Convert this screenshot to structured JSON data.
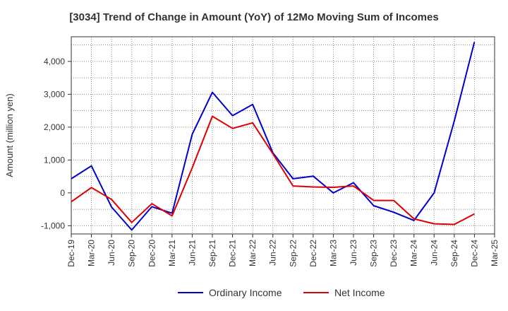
{
  "chart_data": {
    "type": "line",
    "title": "[3034]  Trend of Change in Amount (YoY) of 12Mo Moving Sum of Incomes",
    "xlabel": "",
    "ylabel": "Amount (million yen)",
    "ylim": [
      -1250,
      4750
    ],
    "yticks": [
      -1000,
      0,
      1000,
      2000,
      3000,
      4000
    ],
    "ytick_labels": [
      "-1,000",
      "0",
      "1,000",
      "2,000",
      "3,000",
      "4,000"
    ],
    "categories": [
      "Dec-19",
      "Mar-20",
      "Jun-20",
      "Sep-20",
      "Dec-20",
      "Mar-21",
      "Jun-21",
      "Sep-21",
      "Dec-21",
      "Mar-22",
      "Jun-22",
      "Sep-22",
      "Dec-22",
      "Mar-23",
      "Jun-23",
      "Sep-23",
      "Dec-23",
      "Mar-24",
      "Jun-24",
      "Sep-24",
      "Dec-24",
      "Mar-25"
    ],
    "grid": true,
    "legend_position": "bottom",
    "series": [
      {
        "name": "Ordinary Income",
        "color": "#0000cc",
        "values": [
          430,
          820,
          -430,
          -1130,
          -420,
          -620,
          1780,
          3060,
          2350,
          2690,
          1220,
          430,
          510,
          0,
          310,
          -390,
          -590,
          -840,
          0,
          2190,
          4590,
          null
        ]
      },
      {
        "name": "Net Income",
        "color": "#dd0000",
        "values": [
          -270,
          160,
          -200,
          -900,
          -330,
          -700,
          760,
          2330,
          1960,
          2130,
          1190,
          210,
          180,
          170,
          210,
          -230,
          -230,
          -790,
          -940,
          -960,
          -640,
          null
        ]
      }
    ]
  }
}
